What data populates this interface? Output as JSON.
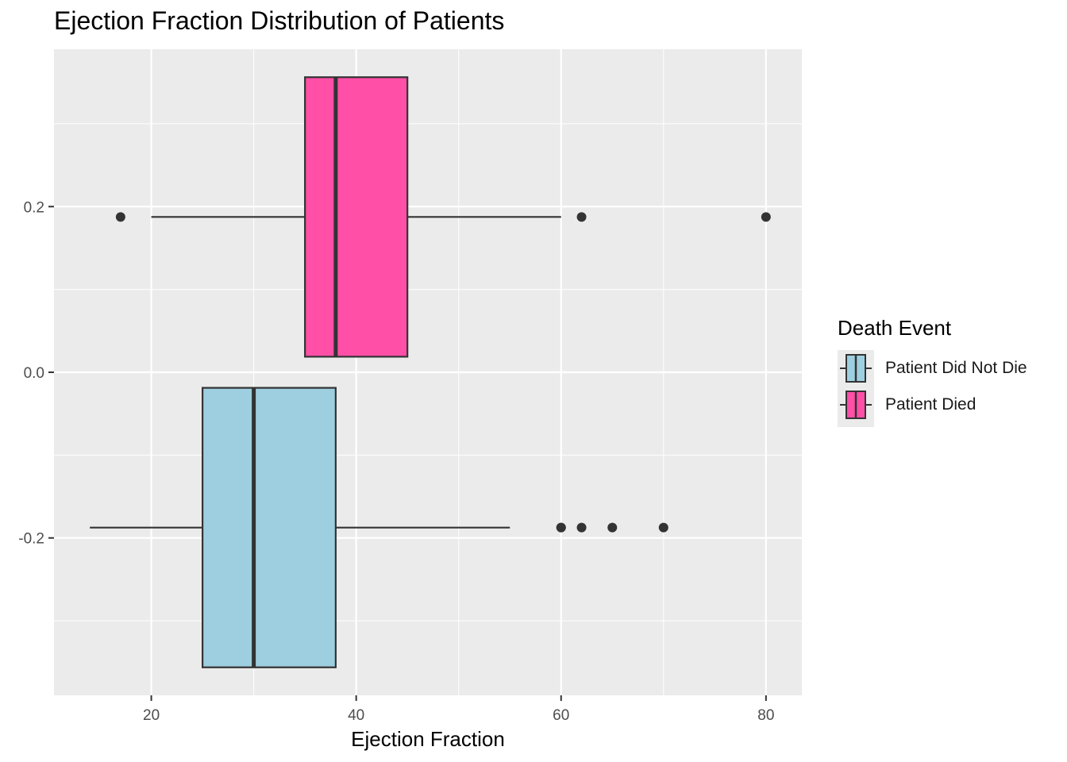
{
  "chart_data": {
    "type": "boxplot",
    "title": "Ejection Fraction Distribution of Patients",
    "xlabel": "Ejection Fraction",
    "ylabel": "",
    "orientation": "horizontal",
    "xlim": [
      10.5,
      83.5
    ],
    "ylim": [
      -0.39,
      0.39
    ],
    "x_ticks": [
      20,
      40,
      60,
      80
    ],
    "x_tick_labels": [
      "20",
      "40",
      "60",
      "80"
    ],
    "y_ticks": [
      -0.2,
      0.0,
      0.2
    ],
    "y_tick_labels": [
      "-0.2",
      "0.0",
      "0.2"
    ],
    "grid": true,
    "legend": {
      "title": "Death Event",
      "position": "right"
    },
    "series": [
      {
        "name": "Patient Did Not Die",
        "color": "#9ecfe0",
        "y": -0.1875,
        "y_box": [
          -0.3562,
          -0.0188
        ],
        "whisker_low": 14,
        "q1": 25,
        "median": 30,
        "q3": 38,
        "whisker_high": 55,
        "outliers": [
          60,
          60,
          62,
          65,
          70
        ]
      },
      {
        "name": "Patient Died",
        "color": "#ff4fa7",
        "y": 0.1875,
        "y_box": [
          0.0188,
          0.3562
        ],
        "whisker_low": 20,
        "q1": 35,
        "median": 38,
        "q3": 45,
        "whisker_high": 60,
        "outliers": [
          17,
          62,
          80
        ]
      }
    ]
  },
  "colors": {
    "panel_bg": "#ebebeb",
    "grid": "#ffffff",
    "box_stroke": "#333333",
    "text": "#4d4d4d"
  }
}
